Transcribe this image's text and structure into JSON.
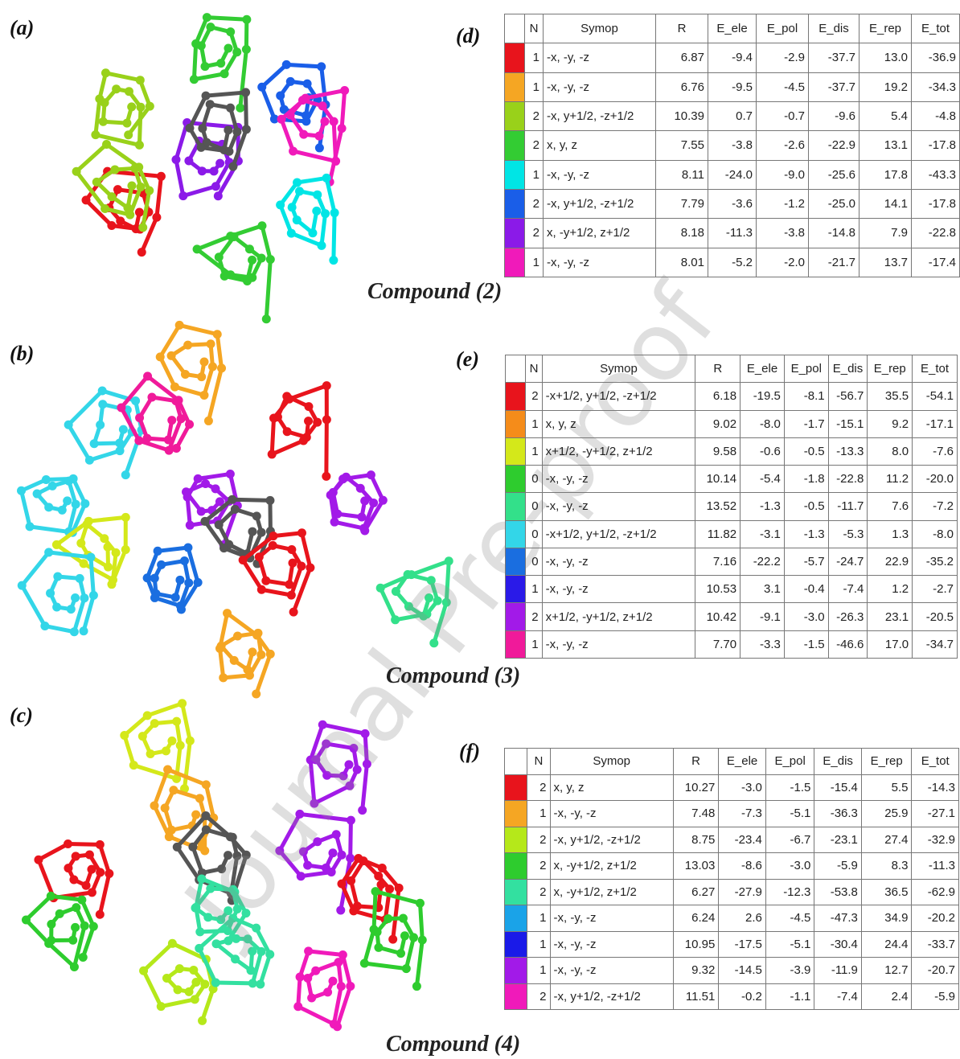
{
  "panels": [
    "(a)",
    "(b)",
    "(c)"
  ],
  "watermark": "Journal Pre-proof",
  "tables": [
    {
      "label": "(d)",
      "caption": "Compound (2)",
      "headers": [
        "N",
        "Symop",
        "R",
        "E_ele",
        "E_pol",
        "E_dis",
        "E_rep",
        "E_tot"
      ],
      "rows": [
        {
          "color": "#e8141c",
          "cells": [
            "1",
            "-x, -y, -z",
            "6.87",
            "-9.4",
            "-2.9",
            "-37.7",
            "13.0",
            "-36.9"
          ]
        },
        {
          "color": "#f5a623",
          "cells": [
            "1",
            "-x, -y, -z",
            "6.76",
            "-9.5",
            "-4.5",
            "-37.7",
            "19.2",
            "-34.3"
          ]
        },
        {
          "color": "#99d11a",
          "cells": [
            "2",
            "-x, y+1/2, -z+1/2",
            "10.39",
            "0.7",
            "-0.7",
            "-9.6",
            "5.4",
            "-4.8"
          ]
        },
        {
          "color": "#33cc33",
          "cells": [
            "2",
            "x, y, z",
            "7.55",
            "-3.8",
            "-2.6",
            "-22.9",
            "13.1",
            "-17.8"
          ]
        },
        {
          "color": "#00e5e5",
          "cells": [
            "1",
            "-x, -y, -z",
            "8.11",
            "-24.0",
            "-9.0",
            "-25.6",
            "17.8",
            "-43.3"
          ]
        },
        {
          "color": "#1a5ee8",
          "cells": [
            "2",
            "-x, y+1/2, -z+1/2",
            "7.79",
            "-3.6",
            "-1.2",
            "-25.0",
            "14.1",
            "-17.8"
          ]
        },
        {
          "color": "#8b1ae8",
          "cells": [
            "2",
            "x, -y+1/2, z+1/2",
            "8.18",
            "-11.3",
            "-3.8",
            "-14.8",
            "7.9",
            "-22.8"
          ]
        },
        {
          "color": "#f01aba",
          "cells": [
            "1",
            "-x, -y, -z",
            "8.01",
            "-5.2",
            "-2.0",
            "-21.7",
            "13.7",
            "-17.4"
          ]
        }
      ]
    },
    {
      "label": "(e)",
      "caption": "Compound (3)",
      "headers": [
        "N",
        "Symop",
        "R",
        "E_ele",
        "E_pol",
        "E_dis",
        "E_rep",
        "E_tot"
      ],
      "rows": [
        {
          "color": "#e8141c",
          "cells": [
            "2",
            "-x+1/2, y+1/2, -z+1/2",
            "6.18",
            "-19.5",
            "-8.1",
            "-56.7",
            "35.5",
            "-54.1"
          ]
        },
        {
          "color": "#f58c1a",
          "cells": [
            "1",
            "x, y, z",
            "9.02",
            "-8.0",
            "-1.7",
            "-15.1",
            "9.2",
            "-17.1"
          ]
        },
        {
          "color": "#d4e81a",
          "cells": [
            "1",
            "x+1/2, -y+1/2, z+1/2",
            "9.58",
            "-0.6",
            "-0.5",
            "-13.3",
            "8.0",
            "-7.6"
          ]
        },
        {
          "color": "#2ecc2e",
          "cells": [
            "0",
            "-x, -y, -z",
            "10.14",
            "-5.4",
            "-1.8",
            "-22.8",
            "11.2",
            "-20.0"
          ]
        },
        {
          "color": "#33e08a",
          "cells": [
            "0",
            "-x, -y, -z",
            "13.52",
            "-1.3",
            "-0.5",
            "-11.7",
            "7.6",
            "-7.2"
          ]
        },
        {
          "color": "#33d6e8",
          "cells": [
            "0",
            "-x+1/2, y+1/2, -z+1/2",
            "11.82",
            "-3.1",
            "-1.3",
            "-5.3",
            "1.3",
            "-8.0"
          ]
        },
        {
          "color": "#1a6ee0",
          "cells": [
            "0",
            "-x, -y, -z",
            "7.16",
            "-22.2",
            "-5.7",
            "-24.7",
            "22.9",
            "-35.2"
          ]
        },
        {
          "color": "#2a1ae8",
          "cells": [
            "1",
            "-x, -y, -z",
            "10.53",
            "3.1",
            "-0.4",
            "-7.4",
            "1.2",
            "-2.7"
          ]
        },
        {
          "color": "#a21ae8",
          "cells": [
            "2",
            "x+1/2, -y+1/2, z+1/2",
            "10.42",
            "-9.1",
            "-3.0",
            "-26.3",
            "23.1",
            "-20.5"
          ]
        },
        {
          "color": "#f01a9a",
          "cells": [
            "1",
            "-x, -y, -z",
            "7.70",
            "-3.3",
            "-1.5",
            "-46.6",
            "17.0",
            "-34.7"
          ]
        }
      ]
    },
    {
      "label": "(f)",
      "caption": "Compound (4)",
      "headers": [
        "N",
        "Symop",
        "R",
        "E_ele",
        "E_pol",
        "E_dis",
        "E_rep",
        "E_tot"
      ],
      "rows": [
        {
          "color": "#e8141c",
          "cells": [
            "2",
            "x, y, z",
            "10.27",
            "-3.0",
            "-1.5",
            "-15.4",
            "5.5",
            "-14.3"
          ]
        },
        {
          "color": "#f5a623",
          "cells": [
            "1",
            "-x, -y, -z",
            "7.48",
            "-7.3",
            "-5.1",
            "-36.3",
            "25.9",
            "-27.1"
          ]
        },
        {
          "color": "#b5e81a",
          "cells": [
            "2",
            "-x, y+1/2, -z+1/2",
            "8.75",
            "-23.4",
            "-6.7",
            "-23.1",
            "27.4",
            "-32.9"
          ]
        },
        {
          "color": "#2ecc2e",
          "cells": [
            "2",
            "x, -y+1/2, z+1/2",
            "13.03",
            "-8.6",
            "-3.0",
            "-5.9",
            "8.3",
            "-11.3"
          ]
        },
        {
          "color": "#33e0a0",
          "cells": [
            "2",
            "x, -y+1/2, z+1/2",
            "6.27",
            "-27.9",
            "-12.3",
            "-53.8",
            "36.5",
            "-62.9"
          ]
        },
        {
          "color": "#1aa3e8",
          "cells": [
            "1",
            "-x, -y, -z",
            "6.24",
            "2.6",
            "-4.5",
            "-47.3",
            "34.9",
            "-20.2"
          ]
        },
        {
          "color": "#1a1ae8",
          "cells": [
            "1",
            "-x, -y, -z",
            "10.95",
            "-17.5",
            "-5.1",
            "-30.4",
            "24.4",
            "-33.7"
          ]
        },
        {
          "color": "#a21ae8",
          "cells": [
            "1",
            "-x, -y, -z",
            "9.32",
            "-14.5",
            "-3.9",
            "-11.9",
            "12.7",
            "-20.7"
          ]
        },
        {
          "color": "#f01aba",
          "cells": [
            "2",
            "-x, y+1/2, -z+1/2",
            "11.51",
            "-0.2",
            "-1.1",
            "-7.4",
            "2.4",
            "-5.9"
          ]
        }
      ]
    }
  ]
}
